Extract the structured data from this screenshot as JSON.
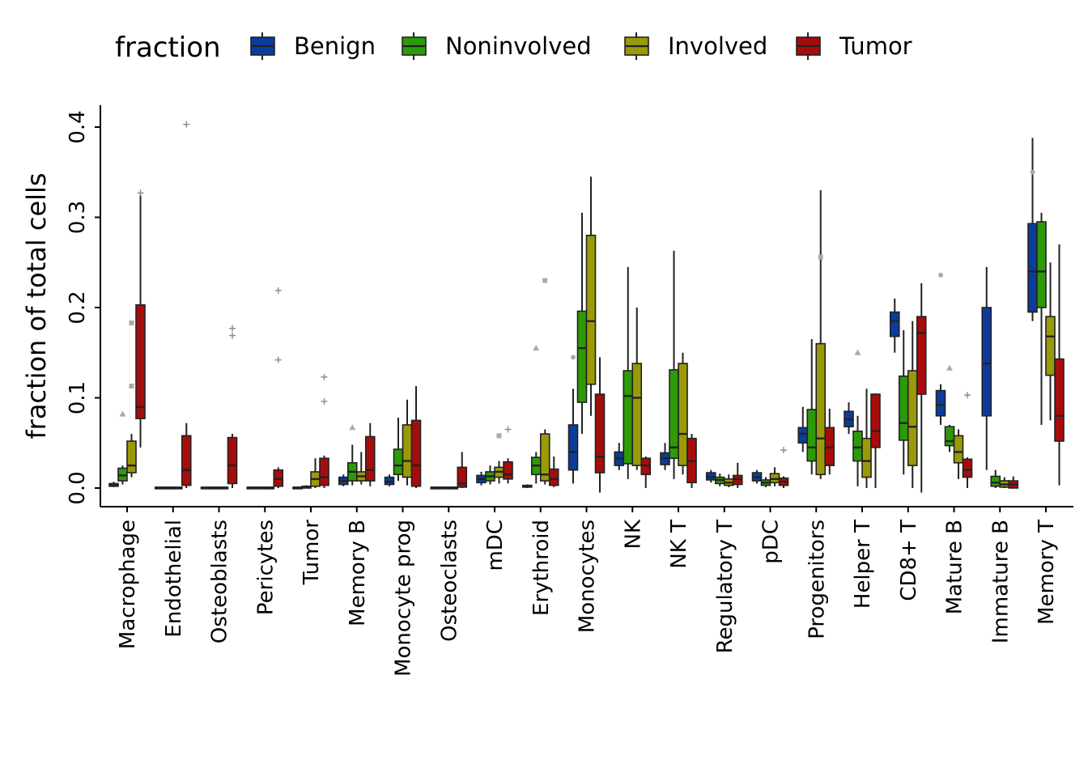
{
  "chart_data": {
    "type": "boxplot",
    "ylabel": "fraction of total cells",
    "xlabel": "",
    "ylim": [
      -0.02,
      0.42
    ],
    "yticks": [
      0.0,
      0.1,
      0.2,
      0.3,
      0.4
    ],
    "ytick_labels": [
      "0.0",
      "0.1",
      "0.2",
      "0.3",
      "0.4"
    ],
    "grid": false,
    "legend": {
      "title": "fraction",
      "position": "top",
      "entries": [
        "Benign",
        "Noninvolved",
        "Involved",
        "Tumor"
      ]
    },
    "colors": {
      "Benign": "#0b3c9c",
      "Noninvolved": "#2d9a08",
      "Involved": "#9a9a08",
      "Tumor": "#a70c0c"
    },
    "categories": [
      "Macrophage",
      "Endothelial",
      "Osteoblasts",
      "Pericytes",
      "Tumor",
      "Memory B",
      "Monocyte prog",
      "Osteoclasts",
      "mDC",
      "Erythroid",
      "Monocytes",
      "NK",
      "NK T",
      "Regulatory T",
      "pDC",
      "Progenitors",
      "Helper T",
      "CD8+ T",
      "Mature B",
      "Immature B",
      "Memory T"
    ],
    "series": [
      {
        "name": "Benign",
        "boxes": [
          {
            "min": 0.001,
            "q1": 0.002,
            "median": 0.003,
            "q3": 0.005,
            "max": 0.007
          },
          {
            "min": 0.0,
            "q1": 0.0,
            "median": 0.0,
            "q3": 0.001,
            "max": 0.001
          },
          {
            "min": 0.0,
            "q1": 0.0,
            "median": 0.0,
            "q3": 0.001,
            "max": 0.001
          },
          {
            "min": 0.0,
            "q1": 0.0,
            "median": 0.0,
            "q3": 0.001,
            "max": 0.001
          },
          {
            "min": 0.0,
            "q1": 0.0,
            "median": 0.0,
            "q3": 0.001,
            "max": 0.001
          },
          {
            "min": 0.002,
            "q1": 0.004,
            "median": 0.008,
            "q3": 0.012,
            "max": 0.015
          },
          {
            "min": 0.002,
            "q1": 0.004,
            "median": 0.007,
            "q3": 0.012,
            "max": 0.015
          },
          {
            "min": 0.0,
            "q1": 0.0,
            "median": 0.0,
            "q3": 0.001,
            "max": 0.001
          },
          {
            "min": 0.003,
            "q1": 0.006,
            "median": 0.01,
            "q3": 0.014,
            "max": 0.018
          },
          {
            "min": 0.0,
            "q1": 0.001,
            "median": 0.002,
            "q3": 0.003,
            "max": 0.004
          },
          {
            "min": 0.005,
            "q1": 0.02,
            "median": 0.04,
            "q3": 0.07,
            "max": 0.11
          },
          {
            "min": 0.02,
            "q1": 0.025,
            "median": 0.033,
            "q3": 0.04,
            "max": 0.05
          },
          {
            "min": 0.02,
            "q1": 0.026,
            "median": 0.033,
            "q3": 0.039,
            "max": 0.05
          },
          {
            "min": 0.006,
            "q1": 0.009,
            "median": 0.012,
            "q3": 0.017,
            "max": 0.02
          },
          {
            "min": 0.005,
            "q1": 0.008,
            "median": 0.012,
            "q3": 0.017,
            "max": 0.02
          },
          {
            "min": 0.04,
            "q1": 0.05,
            "median": 0.06,
            "q3": 0.067,
            "max": 0.09
          },
          {
            "min": 0.06,
            "q1": 0.068,
            "median": 0.076,
            "q3": 0.085,
            "max": 0.095
          },
          {
            "min": 0.15,
            "q1": 0.168,
            "median": 0.185,
            "q3": 0.195,
            "max": 0.21
          },
          {
            "min": 0.07,
            "q1": 0.08,
            "median": 0.092,
            "q3": 0.108,
            "max": 0.115
          },
          {
            "min": 0.02,
            "q1": 0.08,
            "median": 0.138,
            "q3": 0.2,
            "max": 0.245
          },
          {
            "min": 0.185,
            "q1": 0.195,
            "median": 0.24,
            "q3": 0.293,
            "max": 0.388
          }
        ]
      },
      {
        "name": "Noninvolved",
        "boxes": [
          {
            "min": 0.004,
            "q1": 0.008,
            "median": 0.014,
            "q3": 0.022,
            "max": 0.025
          },
          {
            "min": 0.0,
            "q1": 0.0,
            "median": 0.0,
            "q3": 0.001,
            "max": 0.001
          },
          {
            "min": 0.0,
            "q1": 0.0,
            "median": 0.0,
            "q3": 0.001,
            "max": 0.001
          },
          {
            "min": 0.0,
            "q1": 0.0,
            "median": 0.0,
            "q3": 0.001,
            "max": 0.001
          },
          {
            "min": 0.0,
            "q1": 0.0,
            "median": 0.001,
            "q3": 0.002,
            "max": 0.003
          },
          {
            "min": 0.003,
            "q1": 0.008,
            "median": 0.018,
            "q3": 0.028,
            "max": 0.048
          },
          {
            "min": 0.008,
            "q1": 0.015,
            "median": 0.025,
            "q3": 0.043,
            "max": 0.078
          },
          {
            "min": 0.0,
            "q1": 0.0,
            "median": 0.0,
            "q3": 0.001,
            "max": 0.001
          },
          {
            "min": 0.004,
            "q1": 0.008,
            "median": 0.013,
            "q3": 0.018,
            "max": 0.025
          },
          {
            "min": 0.005,
            "q1": 0.015,
            "median": 0.025,
            "q3": 0.034,
            "max": 0.04
          },
          {
            "min": 0.06,
            "q1": 0.095,
            "median": 0.155,
            "q3": 0.196,
            "max": 0.305
          },
          {
            "min": 0.01,
            "q1": 0.027,
            "median": 0.102,
            "q3": 0.13,
            "max": 0.245
          },
          {
            "min": 0.01,
            "q1": 0.033,
            "median": 0.045,
            "q3": 0.131,
            "max": 0.263
          },
          {
            "min": 0.002,
            "q1": 0.005,
            "median": 0.009,
            "q3": 0.012,
            "max": 0.016
          },
          {
            "min": 0.001,
            "q1": 0.003,
            "median": 0.006,
            "q3": 0.009,
            "max": 0.012
          },
          {
            "min": 0.015,
            "q1": 0.03,
            "median": 0.045,
            "q3": 0.087,
            "max": 0.165
          },
          {
            "min": 0.002,
            "q1": 0.03,
            "median": 0.045,
            "q3": 0.063,
            "max": 0.08
          },
          {
            "min": 0.015,
            "q1": 0.053,
            "median": 0.072,
            "q3": 0.124,
            "max": 0.175
          },
          {
            "min": 0.04,
            "q1": 0.047,
            "median": 0.052,
            "q3": 0.068,
            "max": 0.07
          },
          {
            "min": 0.0,
            "q1": 0.002,
            "median": 0.006,
            "q3": 0.013,
            "max": 0.02
          },
          {
            "min": 0.07,
            "q1": 0.2,
            "median": 0.24,
            "q3": 0.295,
            "max": 0.305
          }
        ]
      },
      {
        "name": "Involved",
        "boxes": [
          {
            "min": 0.012,
            "q1": 0.017,
            "median": 0.025,
            "q3": 0.052,
            "max": 0.06
          },
          {
            "min": 0.0,
            "q1": 0.0,
            "median": 0.0,
            "q3": 0.001,
            "max": 0.001
          },
          {
            "min": 0.0,
            "q1": 0.0,
            "median": 0.0,
            "q3": 0.001,
            "max": 0.001
          },
          {
            "min": 0.0,
            "q1": 0.0,
            "median": 0.0,
            "q3": 0.001,
            "max": 0.001
          },
          {
            "min": 0.0,
            "q1": 0.002,
            "median": 0.01,
            "q3": 0.018,
            "max": 0.033
          },
          {
            "min": 0.004,
            "q1": 0.008,
            "median": 0.013,
            "q3": 0.018,
            "max": 0.04
          },
          {
            "min": 0.003,
            "q1": 0.012,
            "median": 0.03,
            "q3": 0.07,
            "max": 0.098
          },
          {
            "min": 0.0,
            "q1": 0.0,
            "median": 0.0,
            "q3": 0.001,
            "max": 0.001
          },
          {
            "min": 0.005,
            "q1": 0.012,
            "median": 0.018,
            "q3": 0.023,
            "max": 0.03
          },
          {
            "min": 0.004,
            "q1": 0.008,
            "median": 0.015,
            "q3": 0.06,
            "max": 0.065
          },
          {
            "min": 0.08,
            "q1": 0.115,
            "median": 0.185,
            "q3": 0.28,
            "max": 0.345
          },
          {
            "min": 0.02,
            "q1": 0.025,
            "median": 0.1,
            "q3": 0.138,
            "max": 0.2
          },
          {
            "min": 0.015,
            "q1": 0.025,
            "median": 0.06,
            "q3": 0.138,
            "max": 0.15
          },
          {
            "min": 0.001,
            "q1": 0.003,
            "median": 0.006,
            "q3": 0.01,
            "max": 0.015
          },
          {
            "min": 0.002,
            "q1": 0.006,
            "median": 0.01,
            "q3": 0.016,
            "max": 0.023
          },
          {
            "min": 0.01,
            "q1": 0.015,
            "median": 0.055,
            "q3": 0.16,
            "max": 0.33
          },
          {
            "min": 0.0,
            "q1": 0.012,
            "median": 0.03,
            "q3": 0.055,
            "max": 0.11
          },
          {
            "min": 0.0,
            "q1": 0.025,
            "median": 0.068,
            "q3": 0.13,
            "max": 0.185
          },
          {
            "min": 0.01,
            "q1": 0.028,
            "median": 0.04,
            "q3": 0.058,
            "max": 0.065
          },
          {
            "min": 0.0,
            "q1": 0.001,
            "median": 0.004,
            "q3": 0.008,
            "max": 0.012
          },
          {
            "min": 0.075,
            "q1": 0.125,
            "median": 0.168,
            "q3": 0.19,
            "max": 0.25
          }
        ]
      },
      {
        "name": "Tumor",
        "boxes": [
          {
            "min": 0.045,
            "q1": 0.077,
            "median": 0.09,
            "q3": 0.203,
            "max": 0.325
          },
          {
            "min": 0.0,
            "q1": 0.003,
            "median": 0.02,
            "q3": 0.058,
            "max": 0.072
          },
          {
            "min": 0.0,
            "q1": 0.005,
            "median": 0.025,
            "q3": 0.056,
            "max": 0.06
          },
          {
            "min": 0.0,
            "q1": 0.002,
            "median": 0.01,
            "q3": 0.02,
            "max": 0.023
          },
          {
            "min": 0.0,
            "q1": 0.003,
            "median": 0.012,
            "q3": 0.033,
            "max": 0.036
          },
          {
            "min": 0.002,
            "q1": 0.008,
            "median": 0.02,
            "q3": 0.057,
            "max": 0.072
          },
          {
            "min": 0.0,
            "q1": 0.002,
            "median": 0.025,
            "q3": 0.075,
            "max": 0.113
          },
          {
            "min": 0.0,
            "q1": 0.001,
            "median": 0.005,
            "q3": 0.023,
            "max": 0.04
          },
          {
            "min": 0.005,
            "q1": 0.01,
            "median": 0.015,
            "q3": 0.029,
            "max": 0.033
          },
          {
            "min": 0.001,
            "q1": 0.003,
            "median": 0.01,
            "q3": 0.021,
            "max": 0.035
          },
          {
            "min": -0.005,
            "q1": 0.017,
            "median": 0.035,
            "q3": 0.104,
            "max": 0.145
          },
          {
            "min": 0.0,
            "q1": 0.015,
            "median": 0.025,
            "q3": 0.033,
            "max": 0.035
          },
          {
            "min": 0.0,
            "q1": 0.006,
            "median": 0.03,
            "q3": 0.055,
            "max": 0.06
          },
          {
            "min": 0.0,
            "q1": 0.004,
            "median": 0.01,
            "q3": 0.014,
            "max": 0.028
          },
          {
            "min": 0.0,
            "q1": 0.003,
            "median": 0.007,
            "q3": 0.011,
            "max": 0.013
          },
          {
            "min": 0.015,
            "q1": 0.025,
            "median": 0.045,
            "q3": 0.067,
            "max": 0.088
          },
          {
            "min": 0.0,
            "q1": 0.045,
            "median": 0.063,
            "q3": 0.104,
            "max": 0.105
          },
          {
            "min": -0.005,
            "q1": 0.104,
            "median": 0.172,
            "q3": 0.19,
            "max": 0.227
          },
          {
            "min": 0.0,
            "q1": 0.012,
            "median": 0.02,
            "q3": 0.032,
            "max": 0.034
          },
          {
            "min": 0.0,
            "q1": 0.0,
            "median": 0.004,
            "q3": 0.008,
            "max": 0.013
          },
          {
            "min": 0.003,
            "q1": 0.052,
            "median": 0.08,
            "q3": 0.143,
            "max": 0.27
          }
        ]
      }
    ],
    "outliers": [
      {
        "series": "Benign",
        "category": "Memory T",
        "value": 0.35
      },
      {
        "series": "Benign",
        "category": "Mature B",
        "value": 0.236
      },
      {
        "series": "Benign",
        "category": "Monocytes",
        "value": 0.145
      },
      {
        "series": "Noninvolved",
        "category": "Macrophage",
        "value": 0.082
      },
      {
        "series": "Noninvolved",
        "category": "Erythroid",
        "value": 0.155
      },
      {
        "series": "Noninvolved",
        "category": "Helper T",
        "value": 0.15
      },
      {
        "series": "Noninvolved",
        "category": "Mature B",
        "value": 0.133
      },
      {
        "series": "Noninvolved",
        "category": "Memory B",
        "value": 0.067
      },
      {
        "series": "Involved",
        "category": "Macrophage",
        "value": 0.183
      },
      {
        "series": "Involved",
        "category": "Macrophage",
        "value": 0.113
      },
      {
        "series": "Involved",
        "category": "Erythroid",
        "value": 0.23
      },
      {
        "series": "Involved",
        "category": "Progenitors",
        "value": 0.256
      },
      {
        "series": "Involved",
        "category": "mDC",
        "value": 0.058
      },
      {
        "series": "Tumor",
        "category": "Endothelial",
        "value": 0.403
      },
      {
        "series": "Tumor",
        "category": "Osteoblasts",
        "value": 0.177
      },
      {
        "series": "Tumor",
        "category": "Osteoblasts",
        "value": 0.169
      },
      {
        "series": "Tumor",
        "category": "Pericytes",
        "value": 0.219
      },
      {
        "series": "Tumor",
        "category": "Pericytes",
        "value": 0.142
      },
      {
        "series": "Tumor",
        "category": "Tumor",
        "value": 0.123
      },
      {
        "series": "Tumor",
        "category": "Tumor",
        "value": 0.096
      },
      {
        "series": "Tumor",
        "category": "mDC",
        "value": 0.065
      },
      {
        "series": "Tumor",
        "category": "Macrophage",
        "value": 0.327
      },
      {
        "series": "Tumor",
        "category": "Mature B",
        "value": 0.103
      },
      {
        "series": "Tumor",
        "category": "pDC",
        "value": 0.042
      }
    ]
  }
}
